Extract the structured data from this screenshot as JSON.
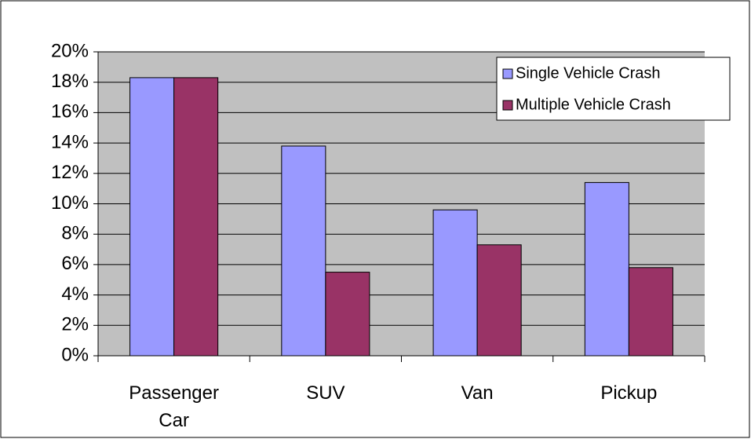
{
  "chart_data": {
    "type": "bar",
    "categories": [
      "Passenger Car",
      "SUV",
      "Van",
      "Pickup"
    ],
    "series": [
      {
        "name": "Single Vehicle Crash",
        "color": "#9999ff",
        "values": [
          18.3,
          13.8,
          9.6,
          11.4
        ]
      },
      {
        "name": "Multiple Vehicle Crash",
        "color": "#993366",
        "values": [
          18.3,
          5.5,
          7.3,
          5.8
        ]
      }
    ],
    "ylim": [
      0,
      20
    ],
    "yticks": [
      {
        "value": 0,
        "label": "0%"
      },
      {
        "value": 2,
        "label": "2%"
      },
      {
        "value": 4,
        "label": "4%"
      },
      {
        "value": 6,
        "label": "6%"
      },
      {
        "value": 8,
        "label": "8%"
      },
      {
        "value": 10,
        "label": "10%"
      },
      {
        "value": 12,
        "label": "12%"
      },
      {
        "value": 14,
        "label": "14%"
      },
      {
        "value": 16,
        "label": "16%"
      },
      {
        "value": 18,
        "label": "18%"
      },
      {
        "value": 20,
        "label": "20%"
      }
    ],
    "grid": true,
    "legend": "upper right"
  }
}
